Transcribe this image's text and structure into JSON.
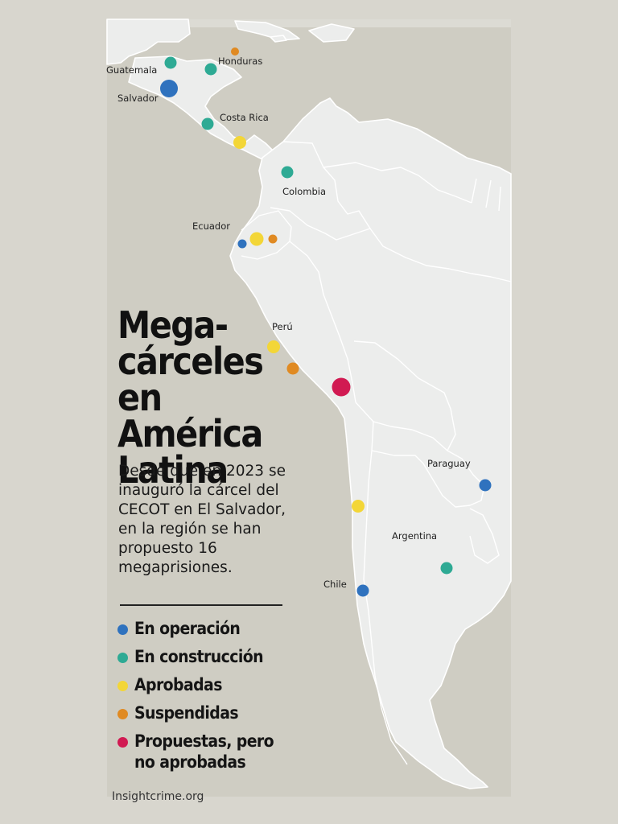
{
  "title": "Mega-\ncárceles\nen América\nLatina",
  "subtitle": "Desde que en 2023 se inauguró la cárcel del CECOT en El Salvador, en la región se han propuesto 16 megaprisiones.",
  "legend": [
    {
      "label": "En operación",
      "color": "#2f72be"
    },
    {
      "label": "En construcción",
      "color": "#2eaa94"
    },
    {
      "label": "Aprobadas",
      "color": "#f3d637"
    },
    {
      "label": "Suspendidas",
      "color": "#e08a22"
    },
    {
      "label": "Propuestas, pero no aprobadas",
      "color": "#d11a52"
    }
  ],
  "country_labels": {
    "guatemala": "Guatemala",
    "honduras": "Honduras",
    "salvador": "Salvador",
    "costa_rica": "Costa Rica",
    "colombia": "Colombia",
    "ecuador": "Ecuador",
    "peru": "Perú",
    "paraguay": "Paraguay",
    "argentina": "Argentina",
    "chile": "Chile"
  },
  "prisons": [
    {
      "country": "Guatemala",
      "status": "En construcción"
    },
    {
      "country": "Honduras",
      "status": "Suspendidas"
    },
    {
      "country": "Honduras",
      "status": "En construcción"
    },
    {
      "country": "El Salvador",
      "status": "En operación"
    },
    {
      "country": "Costa Rica",
      "status": "En construcción"
    },
    {
      "country": "Panamá",
      "status": "Aprobadas"
    },
    {
      "country": "Colombia",
      "status": "En construcción"
    },
    {
      "country": "Ecuador",
      "status": "En operación"
    },
    {
      "country": "Ecuador",
      "status": "Aprobadas"
    },
    {
      "country": "Ecuador",
      "status": "Suspendidas"
    },
    {
      "country": "Perú",
      "status": "Aprobadas"
    },
    {
      "country": "Perú",
      "status": "Suspendidas"
    },
    {
      "country": "Perú",
      "status": "Propuestas, pero no aprobadas"
    },
    {
      "country": "Paraguay",
      "status": "En operación"
    },
    {
      "country": "Chile",
      "status": "Aprobadas"
    },
    {
      "country": "Chile",
      "status": "En operación"
    },
    {
      "country": "Argentina",
      "status": "En construcción"
    }
  ],
  "source": "Insightcrime.org"
}
